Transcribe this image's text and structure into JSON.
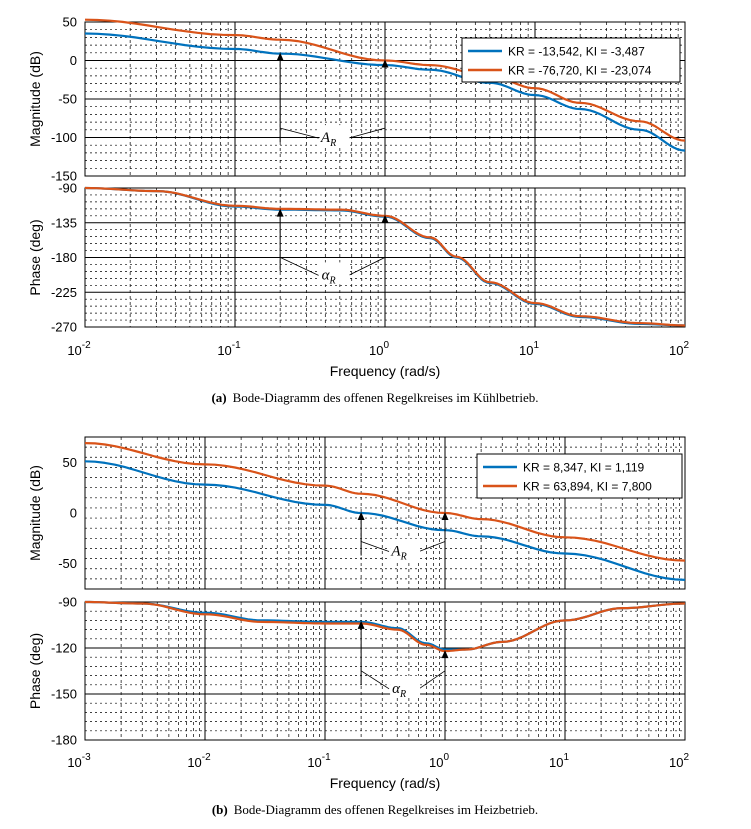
{
  "chart_data": [
    {
      "type": "line",
      "scale": "log-x",
      "xlabel": "Frequency  (rad/s)",
      "xlim": [
        0.01,
        100
      ],
      "x_ticks": [
        {
          "base": "10",
          "exp": "-2"
        },
        {
          "base": "10",
          "exp": "-1"
        },
        {
          "base": "10",
          "exp": "0"
        },
        {
          "base": "10",
          "exp": "1"
        },
        {
          "base": "10",
          "exp": "2"
        }
      ],
      "caption_tag": "(a)",
      "caption": "Bode-Diagramm des offenen Regelkreises im Kühlbetrieb.",
      "legend_position": "top-right",
      "series": [
        {
          "name": "KR = -13,542, KI = -3,487",
          "color": "#0072bd"
        },
        {
          "name": "KR = -76,720, KI = -23,074",
          "color": "#d95319"
        }
      ],
      "magnitude": {
        "ylabel": "Magnitude (dB)",
        "ylim": [
          -150,
          50
        ],
        "y_ticks": [
          50,
          0,
          -50,
          -100,
          -150
        ],
        "x": [
          0.01,
          0.1,
          0.2,
          1,
          2,
          5,
          10,
          20,
          50,
          100
        ],
        "series_values": [
          [
            35,
            15,
            9,
            -6,
            -12,
            -29,
            -45,
            -63,
            -90,
            -117
          ],
          [
            53,
            33,
            27,
            0,
            -6,
            -20,
            -36,
            -55,
            -79,
            -104
          ]
        ]
      },
      "phase": {
        "ylabel": "Phase (deg)",
        "ylim": [
          -270,
          -90
        ],
        "y_ticks": [
          -90,
          -135,
          -180,
          -225,
          -270
        ],
        "x": [
          0.01,
          0.03,
          0.1,
          0.2,
          0.5,
          1,
          2,
          3,
          5,
          10,
          20,
          50,
          100
        ],
        "series_values": [
          [
            -90,
            -94,
            -114,
            -118,
            -119,
            -127,
            -155,
            -180,
            -213,
            -240,
            -257,
            -266,
            -268
          ],
          [
            -90,
            -94,
            -113,
            -117,
            -118,
            -126,
            -154,
            -179,
            -212,
            -239,
            -256,
            -265,
            -268
          ]
        ]
      },
      "annotations": {
        "magnitude": "A",
        "phase": "α",
        "subscript": "R",
        "arrow_x": [
          0.2,
          1
        ]
      }
    },
    {
      "type": "line",
      "scale": "log-x",
      "xlabel": "Frequency  (rad/s)",
      "xlim": [
        0.001,
        100
      ],
      "x_ticks": [
        {
          "base": "10",
          "exp": "-3"
        },
        {
          "base": "10",
          "exp": "-2"
        },
        {
          "base": "10",
          "exp": "-1"
        },
        {
          "base": "10",
          "exp": "0"
        },
        {
          "base": "10",
          "exp": "1"
        },
        {
          "base": "10",
          "exp": "2"
        }
      ],
      "caption_tag": "(b)",
      "caption": "Bode-Diagramm des offenen Regelkreises im Heizbetrieb.",
      "legend_position": "top-right",
      "series": [
        {
          "name": "KR = 8,347, KI = 1,119",
          "color": "#0072bd"
        },
        {
          "name": "KR = 63,894, KI = 7,800",
          "color": "#d95319"
        }
      ],
      "magnitude": {
        "ylabel": "Magnitude (dB)",
        "ylim": [
          -75,
          75
        ],
        "y_ticks": [
          50,
          0,
          -50
        ],
        "x": [
          0.001,
          0.01,
          0.1,
          0.2,
          1,
          2,
          10,
          100
        ],
        "series_values": [
          [
            51,
            28,
            8,
            0,
            -17,
            -23,
            -40,
            -66
          ],
          [
            69,
            48,
            27,
            19,
            0,
            -6,
            -24,
            -47
          ]
        ]
      },
      "phase": {
        "ylabel": "Phase (deg)",
        "ylim": [
          -180,
          -90
        ],
        "y_ticks": [
          -90,
          -120,
          -150,
          -180
        ],
        "x": [
          0.001,
          0.003,
          0.01,
          0.03,
          0.1,
          0.2,
          0.4,
          0.7,
          1,
          1.5,
          3,
          10,
          30,
          100
        ],
        "series_values": [
          [
            -90,
            -91,
            -97,
            -102,
            -103,
            -103,
            -107,
            -117,
            -121,
            -121,
            -116,
            -102,
            -94,
            -91
          ],
          [
            -90,
            -91,
            -98,
            -103,
            -104,
            -104,
            -108,
            -118,
            -122,
            -121,
            -116,
            -102,
            -94,
            -91
          ]
        ]
      },
      "annotations": {
        "magnitude": "A",
        "phase": "α",
        "subscript": "R",
        "arrow_x": [
          0.2,
          1
        ]
      }
    }
  ]
}
